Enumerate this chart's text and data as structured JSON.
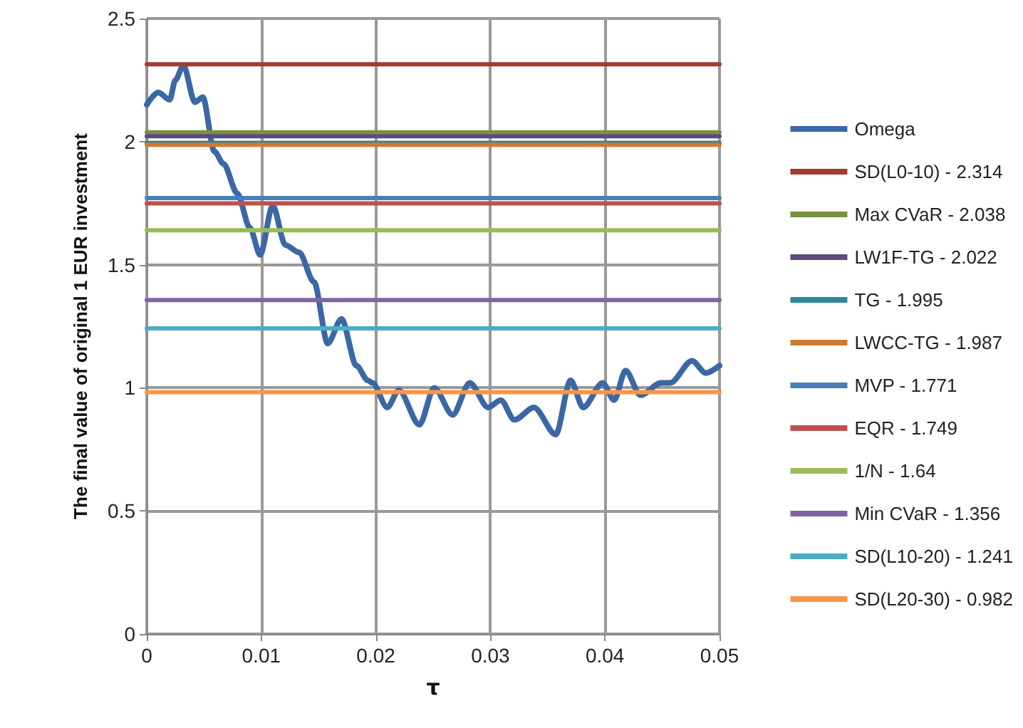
{
  "chart_data": {
    "type": "line",
    "xlabel": "τ",
    "ylabel": "The final value of original 1 EUR investment",
    "xlim": [
      0,
      0.05
    ],
    "xticks": [
      0,
      0.01,
      0.02,
      0.03,
      0.04,
      0.05
    ],
    "ylim": [
      0,
      2.5
    ],
    "yticks": [
      0,
      0.5,
      1,
      1.5,
      2,
      2.5
    ],
    "grid": true,
    "legend": "right",
    "marker": "none",
    "line_style": "solid",
    "series": [
      {
        "name": "Omega",
        "color": "#3b67a4",
        "x": [
          0,
          0.001,
          0.002,
          0.0025,
          0.0032,
          0.0042,
          0.0049,
          0.0059,
          0.0067,
          0.0079,
          0.009,
          0.0099,
          0.011,
          0.0121,
          0.0133,
          0.0146,
          0.0158,
          0.017,
          0.0183,
          0.0193,
          0.0197,
          0.021,
          0.022,
          0.0238,
          0.0251,
          0.0267,
          0.0282,
          0.0298,
          0.0309,
          0.0321,
          0.0338,
          0.0357,
          0.037,
          0.0381,
          0.0398,
          0.0408,
          0.0418,
          0.0431,
          0.0449,
          0.0457,
          0.0476,
          0.0488,
          0.05
        ],
        "values": [
          2.15,
          2.2,
          2.17,
          2.25,
          2.31,
          2.16,
          2.18,
          1.96,
          1.91,
          1.79,
          1.65,
          1.54,
          1.74,
          1.58,
          1.55,
          1.43,
          1.18,
          1.28,
          1.09,
          1.03,
          1.02,
          0.92,
          0.99,
          0.85,
          1.0,
          0.89,
          1.02,
          0.92,
          0.95,
          0.87,
          0.92,
          0.81,
          1.03,
          0.92,
          1.02,
          0.95,
          1.07,
          0.97,
          1.02,
          1.02,
          1.11,
          1.06,
          1.09
        ]
      },
      {
        "name": "SD(L0-10) - 2.314",
        "color": "#a33a36",
        "x": [
          0,
          0.05
        ],
        "values": [
          2.314,
          2.314
        ]
      },
      {
        "name": "Max CVaR - 2.038",
        "color": "#77933c",
        "x": [
          0,
          0.05
        ],
        "values": [
          2.038,
          2.038
        ]
      },
      {
        "name": "LW1F-TG - 2.022",
        "color": "#5f4a7f",
        "x": [
          0,
          0.05
        ],
        "values": [
          2.022,
          2.022
        ]
      },
      {
        "name": "TG - 1.995",
        "color": "#31859c",
        "x": [
          0,
          0.05
        ],
        "values": [
          1.995,
          1.995
        ]
      },
      {
        "name": "LWCC-TG - 1.987",
        "color": "#d07a30",
        "x": [
          0,
          0.05
        ],
        "values": [
          1.987,
          1.987
        ]
      },
      {
        "name": "MVP - 1.771",
        "color": "#4a7ebb",
        "x": [
          0,
          0.05
        ],
        "values": [
          1.771,
          1.771
        ]
      },
      {
        "name": "EQR - 1.749",
        "color": "#c0504d",
        "x": [
          0,
          0.05
        ],
        "values": [
          1.749,
          1.749
        ]
      },
      {
        "name": "1/N - 1.64",
        "color": "#9bbb59",
        "x": [
          0,
          0.05
        ],
        "values": [
          1.64,
          1.64
        ]
      },
      {
        "name": "Min CVaR - 1.356",
        "color": "#8064a2",
        "x": [
          0,
          0.05
        ],
        "values": [
          1.356,
          1.356
        ]
      },
      {
        "name": "SD(L10-20) - 1.241",
        "color": "#4bacc6",
        "x": [
          0,
          0.05
        ],
        "values": [
          1.241,
          1.241
        ]
      },
      {
        "name": "SD(L20-30) - 0.982",
        "color": "#f79646",
        "x": [
          0,
          0.05
        ],
        "values": [
          0.982,
          0.982
        ]
      }
    ]
  }
}
